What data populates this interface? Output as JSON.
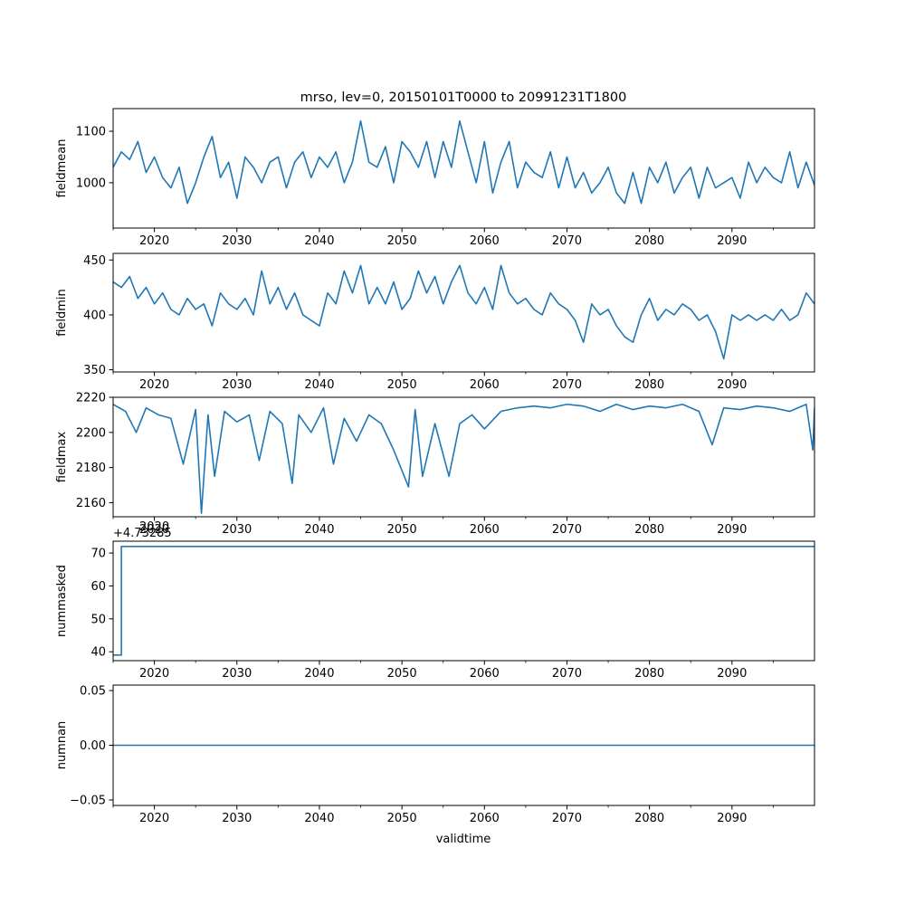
{
  "figure": {
    "title": "mrso, lev=0, 20150101T0000 to 20991231T1800",
    "xlabel": "validtime"
  },
  "colors": {
    "line": "#1f77b4",
    "axes": "#000000",
    "background": "#ffffff"
  },
  "chart_data": [
    {
      "type": "line",
      "ylabel": "fieldmean",
      "xlim": [
        2015.0,
        2100.0
      ],
      "ylim": [
        912,
        1144
      ],
      "xticks": [
        2020,
        2030,
        2040,
        2050,
        2060,
        2070,
        2080,
        2090
      ],
      "xtick_labels": [
        "2020",
        "2030",
        "2040",
        "2050",
        "2060",
        "2070",
        "2080",
        "2090"
      ],
      "yticks": [
        1000,
        1100
      ],
      "ytick_labels": [
        "1000",
        "1100"
      ],
      "offset_label": "",
      "series": [
        {
          "name": "fieldmean",
          "x": [
            2015.0,
            2016.0,
            2017.0,
            2018.0,
            2019.0,
            2020.0,
            2021.0,
            2022.0,
            2023.0,
            2024.0,
            2025.0,
            2026.0,
            2027.0,
            2028.0,
            2029.0,
            2030.0,
            2031.0,
            2032.0,
            2033.0,
            2034.0,
            2035.0,
            2036.0,
            2037.0,
            2038.0,
            2039.0,
            2040.0,
            2041.0,
            2042.0,
            2043.0,
            2044.0,
            2045.0,
            2046.0,
            2047.0,
            2048.0,
            2049.0,
            2050.0,
            2051.0,
            2052.0,
            2053.0,
            2054.0,
            2055.0,
            2056.0,
            2057.0,
            2058.0,
            2059.0,
            2060.0,
            2061.0,
            2062.0,
            2063.0,
            2064.0,
            2065.0,
            2066.0,
            2067.0,
            2068.0,
            2069.0,
            2070.0,
            2071.0,
            2072.0,
            2073.0,
            2074.0,
            2075.0,
            2076.0,
            2077.0,
            2078.0,
            2079.0,
            2080.0,
            2081.0,
            2082.0,
            2083.0,
            2084.0,
            2085.0,
            2086.0,
            2087.0,
            2088.0,
            2089.0,
            2090.0,
            2091.0,
            2092.0,
            2093.0,
            2094.0,
            2095.0,
            2096.0,
            2097.0,
            2098.0,
            2099.0,
            2100.0
          ],
          "y": [
            1030,
            1060,
            1045,
            1080,
            1020,
            1050,
            1010,
            990,
            1030,
            960,
            1000,
            1050,
            1090,
            1010,
            1040,
            970,
            1050,
            1030,
            1000,
            1040,
            1050,
            990,
            1040,
            1060,
            1010,
            1050,
            1030,
            1060,
            1000,
            1040,
            1120,
            1040,
            1030,
            1070,
            1000,
            1080,
            1060,
            1030,
            1080,
            1010,
            1080,
            1030,
            1120,
            1060,
            1000,
            1080,
            980,
            1040,
            1080,
            990,
            1040,
            1020,
            1010,
            1060,
            990,
            1050,
            990,
            1020,
            980,
            1000,
            1030,
            980,
            960,
            1020,
            960,
            1030,
            1000,
            1040,
            980,
            1010,
            1030,
            970,
            1030,
            990,
            1000,
            1010,
            970,
            1040,
            1000,
            1030,
            1010,
            1000,
            1060,
            990,
            1040,
            995
          ]
        }
      ]
    },
    {
      "type": "line",
      "ylabel": "fieldmin",
      "xlim": [
        2015.0,
        2100.0
      ],
      "ylim": [
        348,
        456
      ],
      "xticks": [
        2020,
        2030,
        2040,
        2050,
        2060,
        2070,
        2080,
        2090
      ],
      "xtick_labels": [
        "2020",
        "2030",
        "2040",
        "2050",
        "2060",
        "2070",
        "2080",
        "2090"
      ],
      "yticks": [
        350,
        400,
        450
      ],
      "ytick_labels": [
        "350",
        "400",
        "450"
      ],
      "offset_label": "",
      "series": [
        {
          "name": "fieldmin",
          "x": [
            2015.0,
            2016.0,
            2017.0,
            2018.0,
            2019.0,
            2020.0,
            2021.0,
            2022.0,
            2023.0,
            2024.0,
            2025.0,
            2026.0,
            2027.0,
            2028.0,
            2029.0,
            2030.0,
            2031.0,
            2032.0,
            2033.0,
            2034.0,
            2035.0,
            2036.0,
            2037.0,
            2038.0,
            2039.0,
            2040.0,
            2041.0,
            2042.0,
            2043.0,
            2044.0,
            2045.0,
            2046.0,
            2047.0,
            2048.0,
            2049.0,
            2050.0,
            2051.0,
            2052.0,
            2053.0,
            2054.0,
            2055.0,
            2056.0,
            2057.0,
            2058.0,
            2059.0,
            2060.0,
            2061.0,
            2062.0,
            2063.0,
            2064.0,
            2065.0,
            2066.0,
            2067.0,
            2068.0,
            2069.0,
            2070.0,
            2071.0,
            2072.0,
            2073.0,
            2074.0,
            2075.0,
            2076.0,
            2077.0,
            2078.0,
            2079.0,
            2080.0,
            2081.0,
            2082.0,
            2083.0,
            2084.0,
            2085.0,
            2086.0,
            2087.0,
            2088.0,
            2089.0,
            2090.0,
            2091.0,
            2092.0,
            2093.0,
            2094.0,
            2095.0,
            2096.0,
            2097.0,
            2098.0,
            2099.0,
            2100.0
          ],
          "y": [
            430,
            425,
            435,
            415,
            425,
            410,
            420,
            405,
            400,
            415,
            405,
            410,
            390,
            420,
            410,
            405,
            415,
            400,
            440,
            410,
            425,
            405,
            420,
            400,
            395,
            390,
            420,
            410,
            440,
            420,
            445,
            410,
            425,
            410,
            430,
            405,
            415,
            440,
            420,
            435,
            410,
            430,
            445,
            420,
            410,
            425,
            405,
            445,
            420,
            410,
            415,
            405,
            400,
            420,
            410,
            405,
            395,
            375,
            410,
            400,
            405,
            390,
            380,
            375,
            400,
            415,
            395,
            405,
            400,
            410,
            405,
            395,
            400,
            385,
            360,
            400,
            395,
            400,
            395,
            400,
            395,
            405,
            395,
            400,
            420,
            410
          ]
        }
      ]
    },
    {
      "type": "line",
      "ylabel": "fieldmax",
      "xlim": [
        2015.0,
        2100.0
      ],
      "ylim": [
        2152,
        2220
      ],
      "xticks": [
        2020,
        2030,
        2040,
        2050,
        2060,
        2070,
        2080,
        2090
      ],
      "xtick_labels": [
        "2020",
        "2030",
        "2040",
        "2050",
        "2060",
        "2070",
        "2080",
        "2090"
      ],
      "yticks": [
        2160,
        2180,
        2200,
        2220
      ],
      "ytick_labels": [
        "2160",
        "2180",
        "2200",
        "2220"
      ],
      "offset_label": "",
      "series": [
        {
          "name": "fieldmax",
          "x": [
            2015.0,
            2016.5,
            2017.8,
            2019.0,
            2020.5,
            2022.0,
            2023.5,
            2025.0,
            2025.7,
            2026.5,
            2027.3,
            2028.5,
            2030.0,
            2031.5,
            2032.7,
            2034.0,
            2035.5,
            2036.7,
            2037.5,
            2039.0,
            2040.5,
            2041.7,
            2043.0,
            2044.5,
            2046.0,
            2047.5,
            2049.0,
            2050.8,
            2051.6,
            2052.5,
            2054.0,
            2055.7,
            2057.0,
            2058.5,
            2060.0,
            2062.0,
            2064.0,
            2066.0,
            2068.0,
            2070.0,
            2072.0,
            2074.0,
            2076.0,
            2078.0,
            2080.0,
            2082.0,
            2084.0,
            2086.0,
            2087.6,
            2089.0,
            2091.0,
            2093.0,
            2095.0,
            2097.0,
            2099.0,
            2099.8,
            2100.0
          ],
          "y": [
            2216,
            2212,
            2200,
            2214,
            2210,
            2208,
            2182,
            2213,
            2154,
            2210,
            2175,
            2212,
            2206,
            2210,
            2184,
            2212,
            2205,
            2171,
            2210,
            2200,
            2214,
            2182,
            2208,
            2195,
            2210,
            2205,
            2190,
            2169,
            2213,
            2175,
            2205,
            2175,
            2205,
            2210,
            2202,
            2212,
            2214,
            2215,
            2214,
            2216,
            2215,
            2212,
            2216,
            2213,
            2215,
            2214,
            2216,
            2212,
            2193,
            2214,
            2213,
            2215,
            2214,
            2212,
            2216,
            2190,
            2214
          ]
        }
      ]
    },
    {
      "type": "line",
      "ylabel": "nummasked",
      "xlim": [
        2015.0,
        2100.0
      ],
      "ylim": [
        37.3,
        73.6
      ],
      "xticks": [
        2020,
        2030,
        2040,
        2050,
        2060,
        2070,
        2080,
        2090
      ],
      "xtick_labels": [
        "2020",
        "2030",
        "2040",
        "2050",
        "2060",
        "2070",
        "2080",
        "2090"
      ],
      "yticks": [
        40,
        50,
        60,
        70
      ],
      "ytick_labels": [
        "40",
        "50",
        "60",
        "70"
      ],
      "offset_label": "+4.73285",
      "overlap_label": "2020",
      "series": [
        {
          "name": "nummasked",
          "x": [
            2015.0,
            2016.0,
            2016.0,
            2100.0
          ],
          "y": [
            39,
            39,
            72,
            72
          ]
        }
      ]
    },
    {
      "type": "line",
      "ylabel": "numnan",
      "xlim": [
        2015.0,
        2100.0
      ],
      "ylim": [
        -0.055,
        0.055
      ],
      "xticks": [
        2020,
        2030,
        2040,
        2050,
        2060,
        2070,
        2080,
        2090
      ],
      "xtick_labels": [
        "2020",
        "2030",
        "2040",
        "2050",
        "2060",
        "2070",
        "2080",
        "2090"
      ],
      "yticks": [
        -0.05,
        0.0,
        0.05
      ],
      "ytick_labels": [
        "−0.05",
        "0.00",
        "0.05"
      ],
      "offset_label": "",
      "series": [
        {
          "name": "numnan",
          "x": [
            2015.0,
            2100.0
          ],
          "y": [
            0.0,
            0.0
          ]
        }
      ]
    }
  ]
}
